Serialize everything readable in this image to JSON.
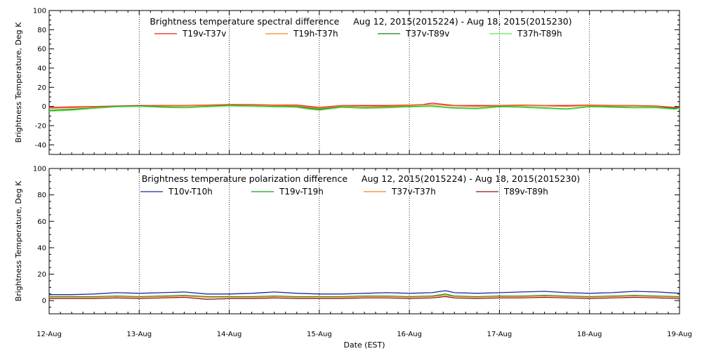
{
  "chart_data": [
    {
      "type": "line",
      "title": "Brightness temperature spectral difference     Aug 12, 2015(2015224) - Aug 18, 2015(2015230)",
      "ylabel": "Brightness Temperature, Deg K",
      "xlabel": "",
      "ylim": [
        -50,
        100
      ],
      "yticks": [
        -40,
        -20,
        0,
        20,
        40,
        60,
        80,
        100
      ],
      "xlim": [
        0,
        7
      ],
      "xtick_labels": [
        "12-Aug",
        "13-Aug",
        "14-Aug",
        "15-Aug",
        "16-Aug",
        "17-Aug",
        "18-Aug",
        "19-Aug"
      ],
      "show_xtick_labels": false,
      "grid": true,
      "legend": "top-center",
      "series": [
        {
          "name": "T19v-T37v",
          "color": "#e8221c",
          "x": [
            0,
            0.25,
            0.5,
            0.75,
            1,
            1.25,
            1.5,
            1.75,
            2,
            2.25,
            2.5,
            2.75,
            2.9,
            3.0,
            3.25,
            3.5,
            3.75,
            4,
            4.15,
            4.25,
            4.4,
            4.5,
            4.75,
            5,
            5.25,
            5.5,
            5.75,
            6,
            6.25,
            6.5,
            6.75,
            6.95,
            7
          ],
          "values": [
            -1,
            -0.5,
            0,
            0.5,
            1,
            1,
            1,
            1.5,
            2,
            2,
            1.5,
            1.5,
            0,
            -1,
            1,
            1,
            1,
            1.5,
            2,
            3.5,
            2,
            1,
            1,
            1,
            1.5,
            1,
            1,
            1.5,
            1,
            1,
            0.5,
            -1,
            0
          ]
        },
        {
          "name": "T19h-T37h",
          "color": "#f5861f",
          "x": [
            0,
            0.25,
            0.5,
            0.75,
            1,
            1.25,
            1.5,
            1.75,
            2,
            2.25,
            2.5,
            2.75,
            2.9,
            3.0,
            3.25,
            3.5,
            3.75,
            4,
            4.25,
            4.5,
            4.75,
            5,
            5.25,
            5.5,
            5.75,
            6,
            6.25,
            6.5,
            6.75,
            6.95,
            7
          ],
          "values": [
            -2,
            -1.5,
            -0.5,
            0,
            0.5,
            0.5,
            0.5,
            1,
            1.5,
            1.5,
            1,
            0.5,
            -1,
            -2,
            0.5,
            0,
            0,
            1,
            2,
            0.5,
            0,
            0.5,
            1,
            0.5,
            0,
            1,
            0.5,
            0.5,
            0,
            -2,
            -1
          ]
        },
        {
          "name": "T37v-T89v",
          "color": "#1a7f1a",
          "x": [
            0,
            0.25,
            0.5,
            0.75,
            1,
            1.25,
            1.5,
            1.75,
            2,
            2.25,
            2.5,
            2.75,
            2.9,
            3.0,
            3.25,
            3.5,
            3.75,
            4,
            4.25,
            4.5,
            4.75,
            5,
            5.25,
            5.5,
            5.75,
            6,
            6.25,
            6.5,
            6.75,
            6.95,
            7
          ],
          "values": [
            -4,
            -3,
            -1.5,
            0,
            0.5,
            -0.5,
            -1,
            0,
            1,
            0.5,
            0,
            -0.5,
            -2,
            -3,
            -0.5,
            -1.5,
            -1,
            0,
            0.5,
            -1.5,
            -2,
            0,
            -0.5,
            -1.5,
            -2.5,
            0,
            -0.5,
            -1,
            -1,
            -2,
            -1
          ]
        },
        {
          "name": "T37h-T89h",
          "color": "#55ee55",
          "x": [
            0,
            0.25,
            0.5,
            0.75,
            1,
            1.25,
            1.5,
            1.75,
            2,
            2.25,
            2.5,
            2.75,
            2.9,
            3.0,
            3.25,
            3.5,
            3.75,
            4,
            4.25,
            4.5,
            4.75,
            5,
            5.25,
            5.5,
            5.75,
            6,
            6.25,
            6.5,
            6.75,
            6.95,
            7
          ],
          "values": [
            -5,
            -4,
            -2,
            -0.5,
            0,
            -1,
            -1.5,
            -0.5,
            0.5,
            0,
            -0.5,
            -1,
            -3,
            -4,
            -1,
            -2,
            -1.5,
            -0.5,
            0,
            -2,
            -2.5,
            -0.5,
            -1,
            -2,
            -3,
            -0.5,
            -1,
            -1.5,
            -1.5,
            -3,
            -2
          ]
        }
      ]
    },
    {
      "type": "line",
      "title": "Brightness temperature polarization difference     Aug 12, 2015(2015224) - Aug 18, 2015(2015230)",
      "ylabel": "Brightness Temperature, Deg K",
      "xlabel": "Date (EST)",
      "ylim": [
        -10,
        100
      ],
      "yticks": [
        0,
        20,
        40,
        60,
        80,
        100
      ],
      "xlim": [
        0,
        7
      ],
      "xtick_labels": [
        "12-Aug",
        "13-Aug",
        "14-Aug",
        "15-Aug",
        "16-Aug",
        "17-Aug",
        "18-Aug",
        "19-Aug"
      ],
      "show_xtick_labels": true,
      "grid": true,
      "legend": "top-center",
      "series": [
        {
          "name": "T10v-T10h",
          "color": "#1f2a9e",
          "x": [
            0,
            0.25,
            0.5,
            0.75,
            1,
            1.25,
            1.5,
            1.75,
            2,
            2.25,
            2.5,
            2.75,
            3,
            3.25,
            3.5,
            3.75,
            4,
            4.25,
            4.4,
            4.5,
            4.75,
            5,
            5.25,
            5.5,
            5.75,
            6,
            6.25,
            6.5,
            6.75,
            7
          ],
          "values": [
            4.5,
            4.5,
            5,
            6,
            5.5,
            6,
            6.5,
            5,
            5,
            5.5,
            6.5,
            5.5,
            5,
            5,
            5.5,
            6,
            5.5,
            6,
            7.5,
            6,
            5.5,
            6,
            6.5,
            7,
            6,
            5.5,
            6,
            7,
            6.5,
            5.5
          ]
        },
        {
          "name": "T19v-T19h",
          "color": "#1d9c1d",
          "x": [
            0,
            0.25,
            0.5,
            0.75,
            1,
            1.25,
            1.5,
            1.75,
            2,
            2.25,
            2.5,
            2.75,
            3,
            3.25,
            3.5,
            3.75,
            4,
            4.25,
            4.4,
            4.5,
            4.75,
            5,
            5.25,
            5.5,
            5.75,
            6,
            6.25,
            6.5,
            6.75,
            7
          ],
          "values": [
            3,
            3,
            3,
            3.5,
            3,
            3.5,
            4,
            3,
            3,
            3,
            3.5,
            3,
            3,
            3,
            3.5,
            3.5,
            3,
            3.5,
            5,
            3.5,
            3,
            3.5,
            3.5,
            4,
            3.5,
            3,
            3.5,
            4,
            3.5,
            3
          ]
        },
        {
          "name": "T37v-T37h",
          "color": "#f5861f",
          "x": [
            0,
            0.25,
            0.5,
            0.75,
            1,
            1.25,
            1.5,
            1.75,
            2,
            2.25,
            2.5,
            2.75,
            3,
            3.25,
            3.5,
            3.75,
            4,
            4.25,
            4.4,
            4.5,
            4.75,
            5,
            5.25,
            5.5,
            5.75,
            6,
            6.25,
            6.5,
            6.75,
            7
          ],
          "values": [
            2.5,
            2.5,
            2.5,
            3,
            2.5,
            3,
            3.5,
            2.5,
            2.5,
            2.5,
            3,
            2.5,
            2.5,
            2.5,
            3,
            3,
            2.5,
            3,
            4,
            3,
            2.5,
            3,
            3,
            3.5,
            3,
            2.5,
            3,
            3.5,
            3,
            2.5
          ]
        },
        {
          "name": "T89v-T89h",
          "color": "#8b1a1a",
          "x": [
            0,
            0.25,
            0.5,
            0.75,
            1,
            1.25,
            1.5,
            1.75,
            2,
            2.25,
            2.5,
            2.75,
            3,
            3.25,
            3.5,
            3.75,
            4,
            4.25,
            4.4,
            4.5,
            4.75,
            5,
            5.25,
            5.5,
            5.75,
            6,
            6.25,
            6.5,
            6.75,
            7
          ],
          "values": [
            1.5,
            1.5,
            1.5,
            2,
            1.5,
            2,
            2.5,
            1,
            1.5,
            1.5,
            2,
            1.5,
            1.5,
            1.5,
            2,
            2,
            1.5,
            2,
            3,
            2,
            1.5,
            2,
            2,
            2.5,
            2,
            1.5,
            2,
            2.5,
            2,
            1.5
          ]
        }
      ]
    }
  ]
}
